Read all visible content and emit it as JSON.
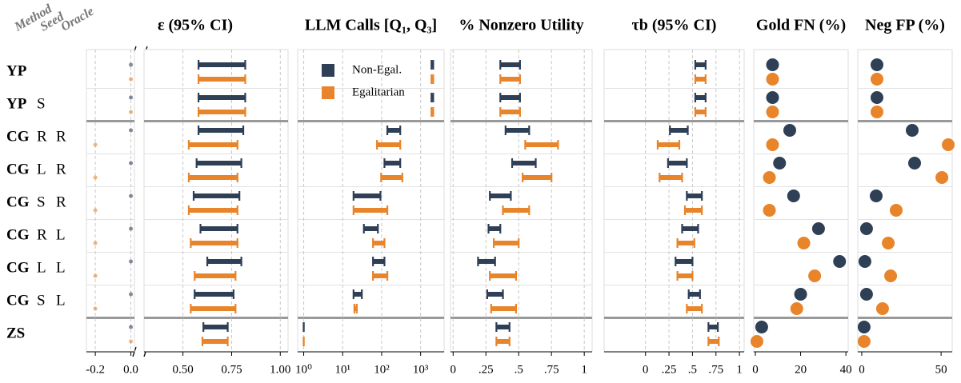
{
  "column_headers": [
    "Method",
    "Seed",
    "Oracle"
  ],
  "rows": [
    [
      "YP"
    ],
    [
      "YP",
      "S"
    ],
    [
      "CG",
      "R",
      "R"
    ],
    [
      "CG",
      "L",
      "R"
    ],
    [
      "CG",
      "S",
      "R"
    ],
    [
      "CG",
      "R",
      "L"
    ],
    [
      "CG",
      "L",
      "L"
    ],
    [
      "CG",
      "S",
      "L"
    ],
    [
      "ZS"
    ]
  ],
  "chart_data": [
    {
      "type": "interval",
      "title": "ε (95% CI)",
      "xlim": [
        0.3,
        1.04
      ],
      "xticks": [
        {
          "value": 0.5,
          "label": "0.50"
        },
        0.75,
        {
          "value": 1,
          "label": "1.00"
        }
      ],
      "grid": true,
      "series": [
        {
          "low": [
            0.58,
            0.58,
            0.58,
            0.57,
            0.555,
            0.59,
            0.625,
            0.56,
            0.605
          ],
          "high": [
            0.82,
            0.82,
            0.81,
            0.8,
            0.79,
            0.78,
            0.8,
            0.76,
            0.73
          ]
        },
        {
          "low": [
            0.58,
            0.58,
            0.53,
            0.53,
            0.53,
            0.54,
            0.56,
            0.54,
            0.6
          ],
          "high": [
            0.82,
            0.82,
            0.78,
            0.78,
            0.78,
            0.78,
            0.77,
            0.77,
            0.73
          ]
        }
      ],
      "broken_axis": {
        "xlim": [
          -0.25,
          0.02
        ],
        "xticks": [
          -0.2,
          {
            "value": 0,
            "label": "0.0"
          }
        ],
        "series": [
          {
            "values": [
              0,
              0,
              0,
              0,
              0,
              0,
              0,
              0,
              0
            ]
          },
          {
            "values": [
              0,
              0,
              -0.2,
              -0.2,
              -0.2,
              -0.2,
              -0.2,
              -0.2,
              0
            ]
          }
        ]
      }
    },
    {
      "type": "interval",
      "title": "LLM Calls [Q₁, Q₃]",
      "log_x": true,
      "xlim": [
        0.7,
        4000
      ],
      "xticks": [
        {
          "value": 1,
          "label": "10⁰"
        },
        {
          "value": 10,
          "label": "10¹"
        },
        {
          "value": 100,
          "label": "10²"
        },
        {
          "value": 1000,
          "label": "10³"
        }
      ],
      "grid": true,
      "legend": {
        "location": "upper left",
        "entries": [
          {
            "name": "Non-Egal.",
            "color": "#2e3f56"
          },
          {
            "name": "Egalitarian",
            "color": "#e8842a"
          }
        ]
      },
      "series": [
        {
          "low": [
            1900,
            1900,
            140,
            118,
            19,
            35,
            60,
            19,
            1
          ],
          "high": [
            2100,
            2100,
            300,
            300,
            93,
            80,
            118,
            31,
            1
          ]
        },
        {
          "low": [
            1900,
            1900,
            76,
            97,
            19,
            60,
            60,
            20,
            1
          ],
          "high": [
            2100,
            2100,
            300,
            340,
            140,
            118,
            140,
            23,
            1
          ]
        }
      ]
    },
    {
      "type": "interval",
      "title": "% Nonzero Utility",
      "xlim": [
        -0.02,
        1.06
      ],
      "xticks": [
        0,
        {
          "value": 0.25,
          "label": ".25"
        },
        {
          "value": 0.5,
          "label": ".5"
        },
        {
          "value": 0.75,
          "label": ".75"
        },
        1
      ],
      "grid": true,
      "series": [
        {
          "low": [
            0.36,
            0.36,
            0.4,
            0.45,
            0.28,
            0.27,
            0.19,
            0.26,
            0.33
          ],
          "high": [
            0.51,
            0.51,
            0.58,
            0.63,
            0.44,
            0.36,
            0.32,
            0.38,
            0.43
          ]
        },
        {
          "low": [
            0.36,
            0.36,
            0.55,
            0.53,
            0.38,
            0.31,
            0.28,
            0.29,
            0.33
          ],
          "high": [
            0.51,
            0.51,
            0.8,
            0.75,
            0.58,
            0.5,
            0.48,
            0.48,
            0.43
          ]
        }
      ]
    },
    {
      "type": "interval",
      "title": "τb (95% CI)",
      "xlim": [
        -0.44,
        1.05
      ],
      "xticks": [
        0,
        {
          "value": 0.25,
          "label": ".25"
        },
        {
          "value": 0.5,
          "label": ".5"
        },
        {
          "value": 0.75,
          "label": ".75"
        },
        1
      ],
      "grid": true,
      "series": [
        {
          "low": [
            0.53,
            0.53,
            0.26,
            0.24,
            0.44,
            0.39,
            0.32,
            0.46,
            0.67
          ],
          "high": [
            0.64,
            0.64,
            0.45,
            0.44,
            0.6,
            0.56,
            0.5,
            0.58,
            0.77
          ]
        },
        {
          "low": [
            0.53,
            0.53,
            0.13,
            0.15,
            0.42,
            0.34,
            0.34,
            0.44,
            0.67
          ],
          "high": [
            0.64,
            0.64,
            0.36,
            0.39,
            0.6,
            0.52,
            0.5,
            0.6,
            0.78
          ]
        }
      ]
    },
    {
      "type": "dot",
      "title": "Gold FN (%)",
      "xlim": [
        -0.7,
        41
      ],
      "xticks": [
        0,
        20,
        40
      ],
      "grid": false,
      "series": [
        {
          "values": [
            7.6,
            7.6,
            15.2,
            10.7,
            16.9,
            27.9,
            37.2,
            20,
            2.8
          ]
        },
        {
          "values": [
            7.6,
            7.6,
            7.6,
            6.2,
            6.2,
            21.4,
            26.2,
            18.3,
            0.7
          ]
        }
      ]
    },
    {
      "type": "dot",
      "title": "Neg FP (%)",
      "xlim": [
        -2.5,
        57
      ],
      "xticks": [
        0,
        50
      ],
      "grid": false,
      "series": [
        {
          "values": [
            9.6,
            9.6,
            31.8,
            33.3,
            9.1,
            3,
            2,
            3,
            1.5
          ]
        },
        {
          "values": [
            9.6,
            9.6,
            54.5,
            50.5,
            21.7,
            16.7,
            18.2,
            13.1,
            1.5
          ]
        }
      ]
    }
  ]
}
